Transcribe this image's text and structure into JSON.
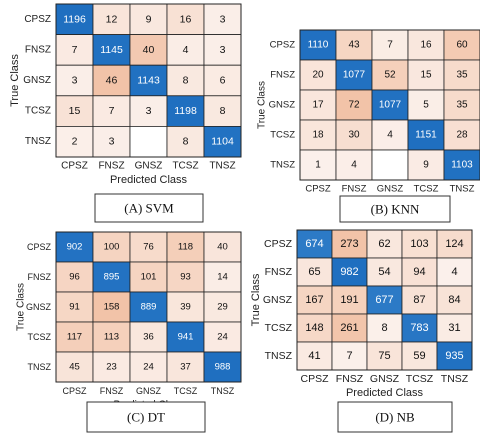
{
  "chart_data": [
    {
      "type": "heatmap",
      "caption": "(A) SVM",
      "categories": [
        "CPSZ",
        "FNSZ",
        "GNSZ",
        "TCSZ",
        "TNSZ"
      ],
      "xlabel": "Predicted Class",
      "ylabel": "True Class",
      "values": [
        [
          1196,
          12,
          9,
          16,
          3
        ],
        [
          7,
          1145,
          40,
          4,
          3
        ],
        [
          3,
          46,
          1143,
          8,
          6
        ],
        [
          15,
          7,
          3,
          1198,
          8
        ],
        [
          2,
          3,
          null,
          8,
          1104
        ]
      ]
    },
    {
      "type": "heatmap",
      "caption": "(B) KNN",
      "categories": [
        "CPSZ",
        "FNSZ",
        "GNSZ",
        "TCSZ",
        "TNSZ"
      ],
      "xlabel": "Predicted Class",
      "ylabel": "True Class",
      "values": [
        [
          1110,
          43,
          7,
          16,
          60
        ],
        [
          20,
          1077,
          52,
          15,
          35
        ],
        [
          17,
          72,
          1077,
          5,
          35
        ],
        [
          18,
          30,
          4,
          1151,
          28
        ],
        [
          1,
          4,
          null,
          9,
          1103
        ]
      ]
    },
    {
      "type": "heatmap",
      "caption": "(C) DT",
      "categories": [
        "CPSZ",
        "FNSZ",
        "GNSZ",
        "TCSZ",
        "TNSZ"
      ],
      "xlabel": "Predicted Class",
      "ylabel": "True Class",
      "values": [
        [
          902,
          100,
          76,
          118,
          40
        ],
        [
          96,
          895,
          101,
          93,
          14
        ],
        [
          91,
          158,
          889,
          39,
          29
        ],
        [
          117,
          113,
          36,
          941,
          24
        ],
        [
          45,
          23,
          24,
          37,
          988
        ]
      ]
    },
    {
      "type": "heatmap",
      "caption": "(D) NB",
      "categories": [
        "CPSZ",
        "FNSZ",
        "GNSZ",
        "TCSZ",
        "TNSZ"
      ],
      "xlabel": "Predicted Class",
      "ylabel": "True Class",
      "values": [
        [
          674,
          273,
          62,
          103,
          124
        ],
        [
          65,
          982,
          54,
          94,
          4
        ],
        [
          167,
          191,
          677,
          87,
          84
        ],
        [
          148,
          261,
          8,
          783,
          31
        ],
        [
          41,
          7,
          75,
          59,
          935
        ]
      ]
    }
  ],
  "colors": {
    "diagonal": "#1f6fc0",
    "diagonal_light": "#4a93d4",
    "offdiag_light": "#fbf1ec",
    "offdiag_dark": "#f2c3a8",
    "grid": "#222222"
  }
}
